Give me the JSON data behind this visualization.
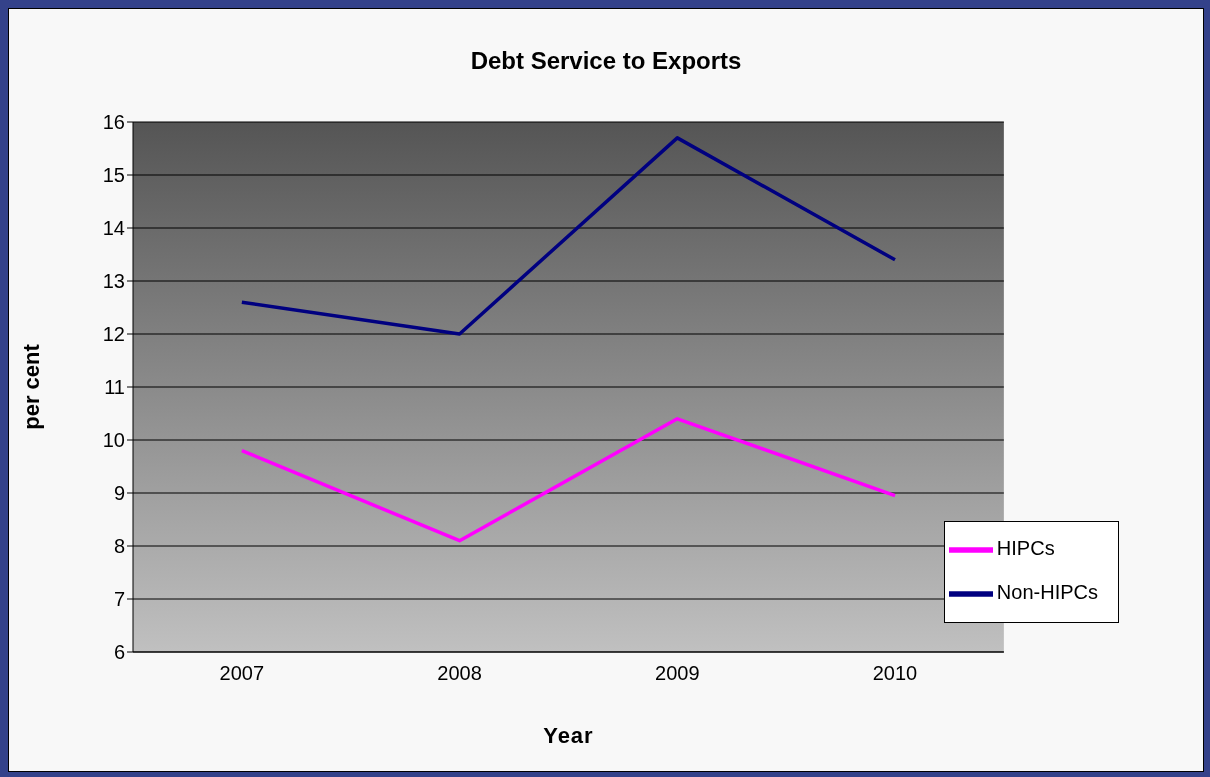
{
  "chart_data": {
    "type": "line",
    "title": "Debt Service to Exports",
    "xlabel": "Year",
    "ylabel": "per cent",
    "categories": [
      "2007",
      "2008",
      "2009",
      "2010"
    ],
    "series": [
      {
        "name": "Non-HIPCs",
        "color": "#000080",
        "values": [
          12.6,
          12.0,
          15.7,
          13.4
        ]
      },
      {
        "name": "HIPCs",
        "color": "#ff00ff",
        "values": [
          9.8,
          8.1,
          10.4,
          8.95
        ]
      }
    ],
    "ylim": [
      6,
      16
    ],
    "yticks": [
      6,
      7,
      8,
      9,
      10,
      11,
      12,
      13,
      14,
      15,
      16
    ],
    "grid": "y",
    "legend": "bottom right",
    "marker": "none",
    "line_style": "solid"
  }
}
